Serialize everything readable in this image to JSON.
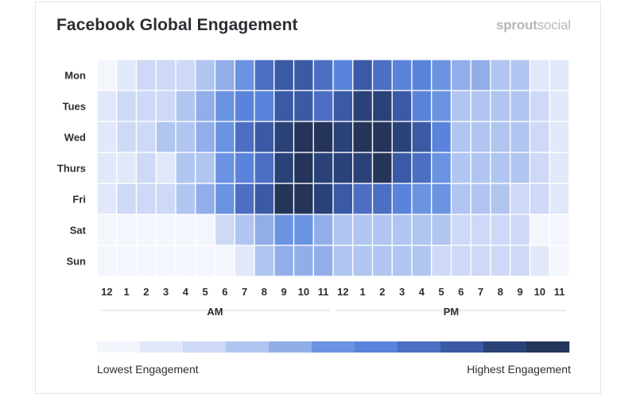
{
  "title": "Facebook Global Engagement",
  "brand": {
    "bold": "sprout",
    "light": "social"
  },
  "chart_data": {
    "type": "heatmap",
    "title": "Facebook Global Engagement",
    "rows": [
      "Mon",
      "Tues",
      "Wed",
      "Thurs",
      "Fri",
      "Sat",
      "Sun"
    ],
    "columns": [
      "12",
      "1",
      "2",
      "3",
      "4",
      "5",
      "6",
      "7",
      "8",
      "9",
      "10",
      "11",
      "12",
      "1",
      "2",
      "3",
      "4",
      "5",
      "6",
      "7",
      "8",
      "9",
      "10",
      "11"
    ],
    "period_labels": [
      "AM",
      "PM"
    ],
    "scale_levels": 11,
    "values": [
      [
        0,
        1,
        2,
        2,
        2,
        3,
        4,
        5,
        7,
        8,
        8,
        7,
        6,
        8,
        7,
        6,
        6,
        5,
        4,
        4,
        3,
        3,
        1,
        1
      ],
      [
        1,
        2,
        2,
        2,
        3,
        4,
        5,
        6,
        6,
        8,
        8,
        7,
        8,
        9,
        9,
        8,
        6,
        5,
        3,
        3,
        3,
        3,
        2,
        1
      ],
      [
        1,
        2,
        2,
        3,
        3,
        4,
        5,
        7,
        8,
        9,
        10,
        10,
        9,
        10,
        10,
        9,
        8,
        6,
        3,
        3,
        3,
        3,
        2,
        1
      ],
      [
        1,
        1,
        2,
        1,
        3,
        3,
        5,
        6,
        7,
        9,
        10,
        9,
        9,
        9,
        10,
        8,
        7,
        5,
        3,
        3,
        3,
        3,
        2,
        1
      ],
      [
        1,
        2,
        2,
        2,
        3,
        4,
        5,
        7,
        8,
        10,
        10,
        9,
        8,
        7,
        7,
        6,
        5,
        5,
        3,
        3,
        3,
        2,
        2,
        1
      ],
      [
        0,
        0,
        0,
        0,
        0,
        0,
        2,
        3,
        4,
        5,
        5,
        4,
        3,
        3,
        3,
        3,
        3,
        3,
        2,
        2,
        2,
        2,
        0,
        0
      ],
      [
        0,
        0,
        0,
        0,
        0,
        0,
        0,
        1,
        3,
        4,
        4,
        4,
        3,
        3,
        3,
        3,
        3,
        2,
        2,
        2,
        2,
        2,
        1,
        0
      ]
    ],
    "legend": {
      "low_label": "Lowest Engagement",
      "high_label": "Highest Engagement"
    },
    "colors": [
      "#f4f6fd",
      "#e1e8f9",
      "#cdd9f6",
      "#b0c5f0",
      "#92aee9",
      "#6a93e2",
      "#5a84dc",
      "#4c6fc3",
      "#3b5aa5",
      "#2b4278",
      "#253559"
    ]
  }
}
